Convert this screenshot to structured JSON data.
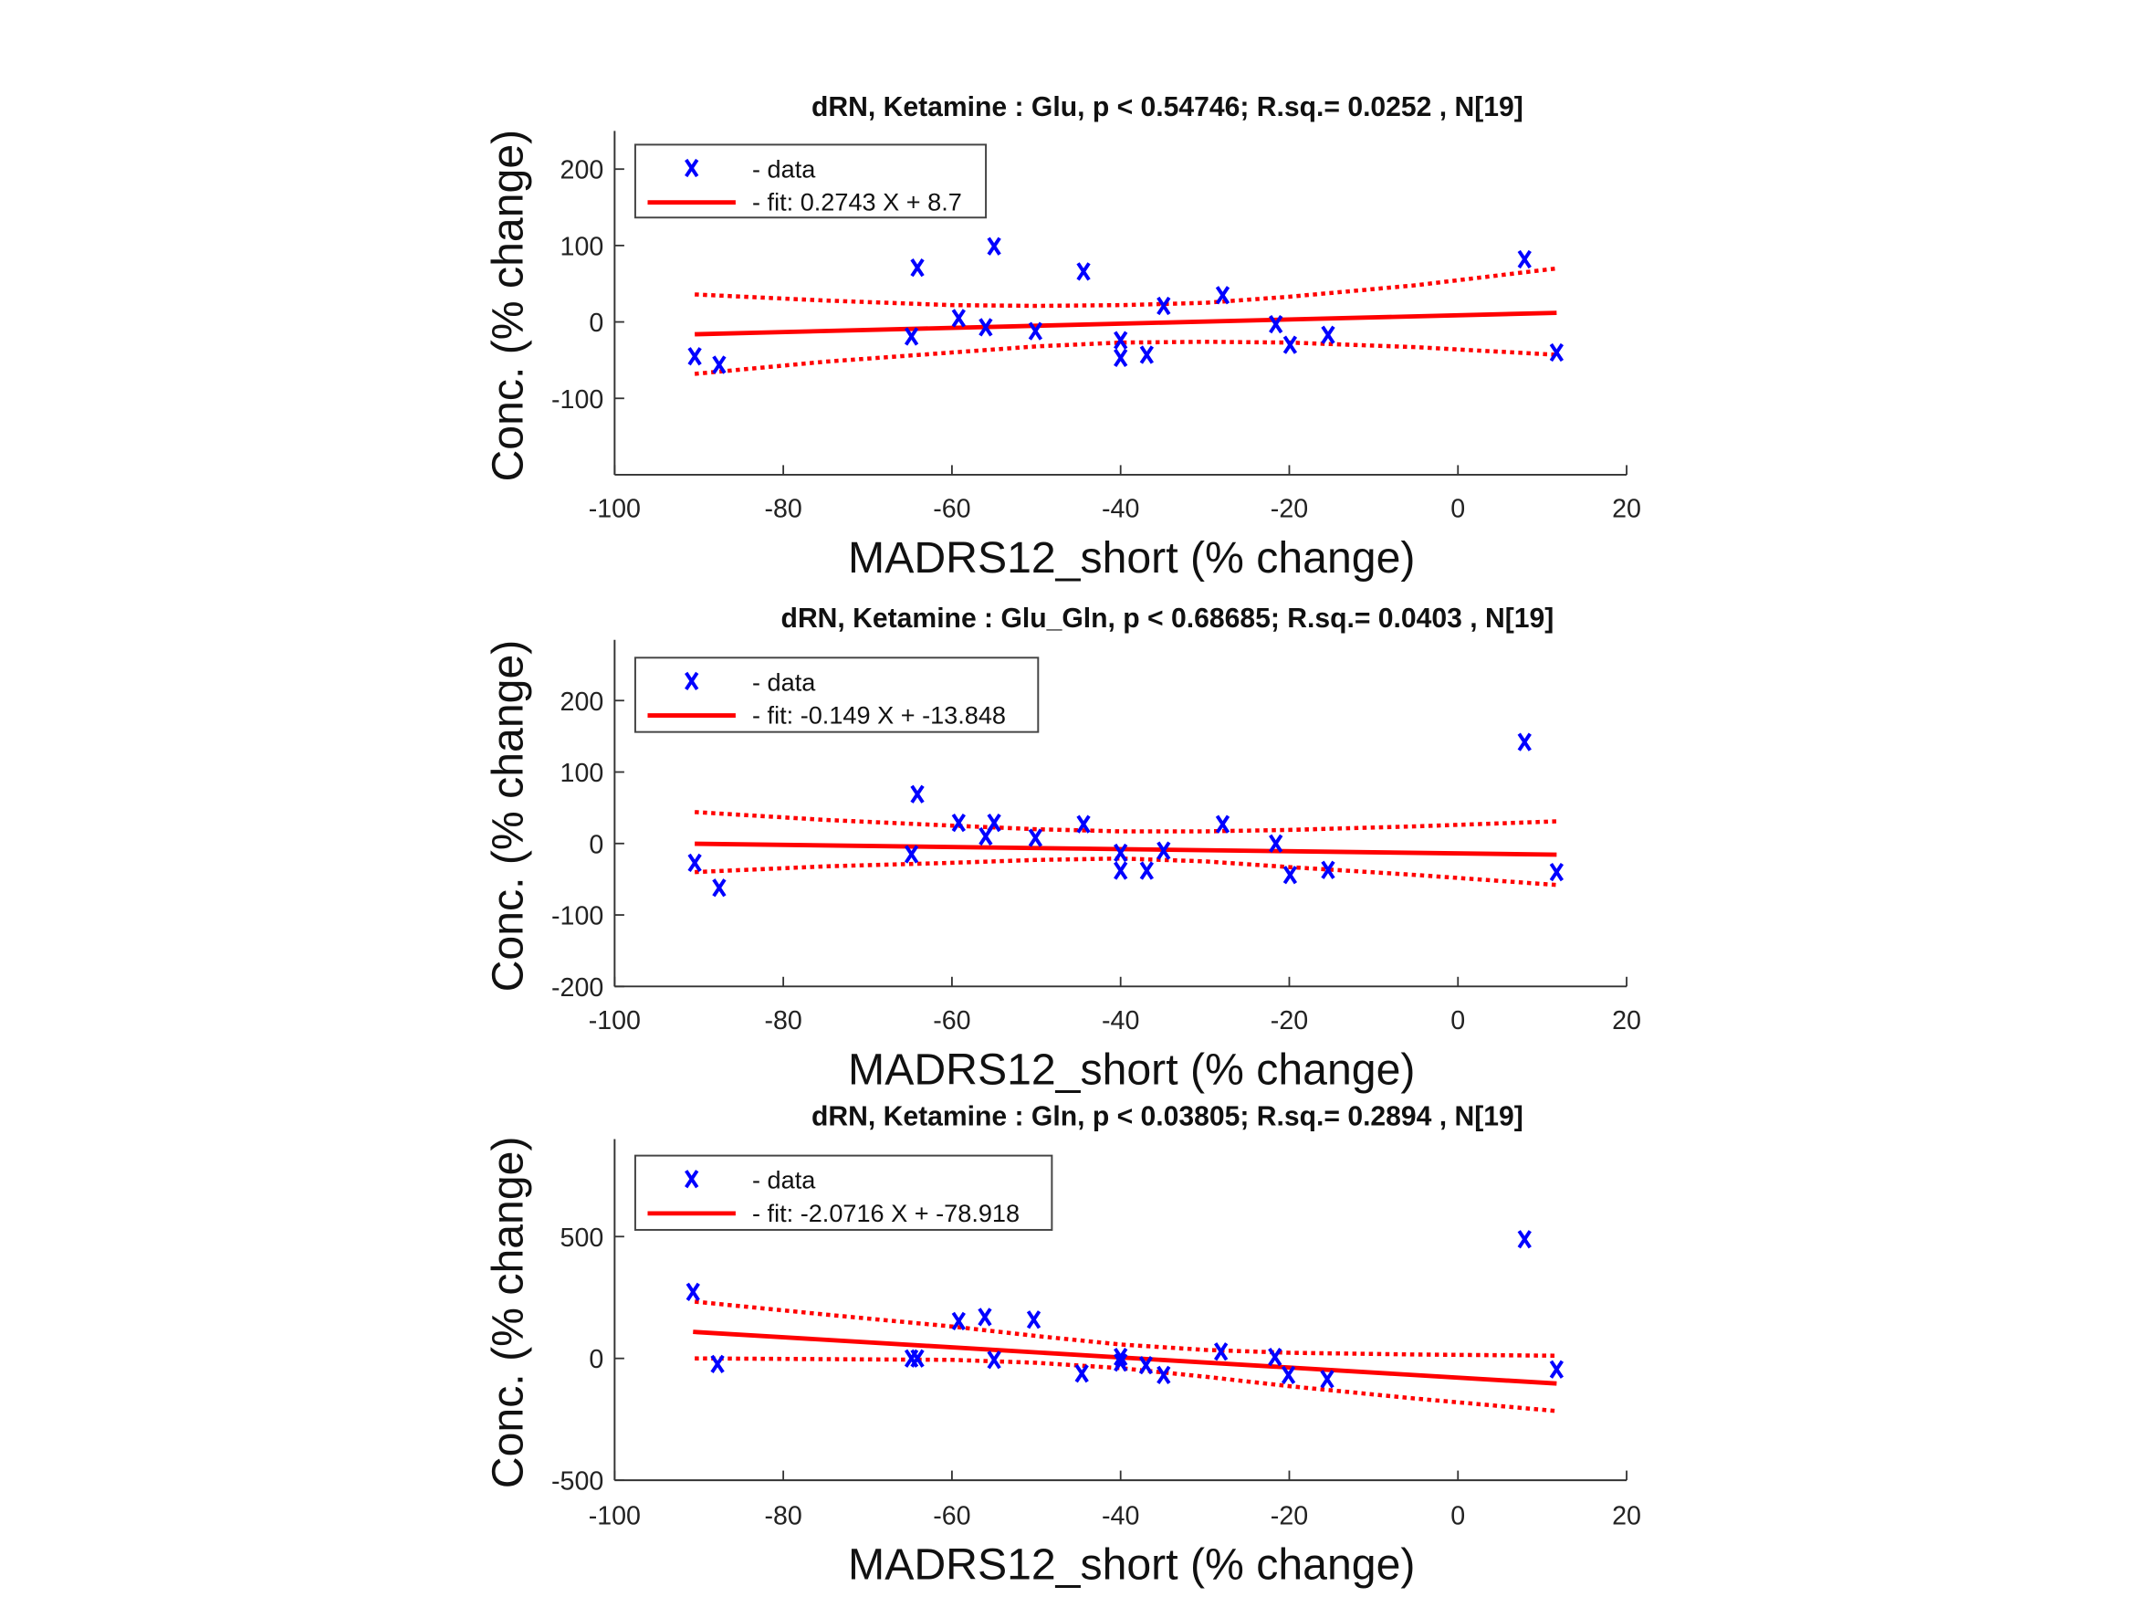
{
  "chart_data": [
    {
      "type": "scatter",
      "title": "dRN,  Ketamine : Glu, p < 0.54746; R.sq.= 0.0252 , N[19]",
      "xlabel": "MADRS12_short (% change)",
      "ylabel": "Conc. (% change)",
      "xlim": [
        -100,
        20
      ],
      "ylim": [
        -200,
        250
      ],
      "xticks": [
        -100,
        -80,
        -60,
        -40,
        -20,
        0,
        20
      ],
      "yticks": [
        -100,
        0,
        100,
        200
      ],
      "legend": {
        "placement": "top-left",
        "data_label": "- data",
        "fit_label": "- fit: 0.2743 X + 8.7"
      },
      "fit": {
        "slope": 0.2743,
        "intercept": 8.7
      },
      "x": [
        -90.5,
        -87.6,
        -64.1,
        -64.8,
        -59.2,
        -56.0,
        -55.0,
        -50.1,
        -44.4,
        -40.0,
        -40.0,
        -36.9,
        -34.9,
        -27.9,
        -21.6,
        -19.9,
        -15.4,
        7.9,
        11.7
      ],
      "y": [
        -45,
        -56,
        71,
        -19,
        5,
        -7,
        99,
        -12,
        66,
        -24,
        -47,
        -43,
        21,
        35,
        -3,
        -30,
        -17,
        82,
        -40
      ],
      "ci_x": [
        -90.5,
        -75,
        -60,
        -50,
        -40,
        -30,
        -20,
        -5,
        11.7
      ],
      "ci_upper": [
        36,
        28,
        22,
        21,
        22,
        25,
        33,
        48,
        70
      ],
      "ci_lower": [
        -68,
        -52,
        -40,
        -32,
        -27,
        -26,
        -27,
        -33,
        -43
      ]
    },
    {
      "type": "scatter",
      "title": "dRN,  Ketamine : Glu_Gln, p < 0.68685; R.sq.= 0.0403 , N[19]",
      "xlabel": "MADRS12_short (% change)",
      "ylabel": "Conc. (% change)",
      "xlim": [
        -100,
        20
      ],
      "ylim": [
        -200,
        285
      ],
      "xticks": [
        -100,
        -80,
        -60,
        -40,
        -20,
        0,
        20
      ],
      "yticks": [
        -200,
        -100,
        0,
        100,
        200
      ],
      "legend": {
        "placement": "top-left",
        "data_label": "- data",
        "fit_label": "- fit: -0.149 X + -13.848"
      },
      "fit": {
        "slope": -0.149,
        "intercept": -13.848
      },
      "x": [
        -90.5,
        -87.6,
        -64.1,
        -64.8,
        -59.2,
        -56.0,
        -55.0,
        -50.1,
        -44.4,
        -40.0,
        -40.0,
        -36.9,
        -34.9,
        -27.9,
        -21.6,
        -19.9,
        -15.4,
        7.9,
        11.7
      ],
      "y": [
        -27,
        -62,
        69,
        -15,
        29,
        10,
        29,
        8,
        27,
        -13,
        -38,
        -38,
        -10,
        27,
        0,
        -44,
        -37,
        142,
        -40
      ],
      "ci_x": [
        -90.5,
        -75,
        -60,
        -50,
        -40,
        -30,
        -20,
        -5,
        11.7
      ],
      "ci_upper": [
        44,
        33,
        25,
        20,
        17,
        17,
        19,
        24,
        31
      ],
      "ci_lower": [
        -40,
        -32,
        -27,
        -23,
        -21,
        -25,
        -33,
        -44,
        -58
      ]
    },
    {
      "type": "scatter",
      "title": "dRN,  Ketamine : Gln, p < 0.03805; R.sq.= 0.2894 , N[19]",
      "xlabel": "MADRS12_short (% change)",
      "ylabel": "Conc. (% change)",
      "xlim": [
        -100,
        20
      ],
      "ylim": [
        -500,
        900
      ],
      "xticks": [
        -100,
        -80,
        -60,
        -40,
        -20,
        0,
        20
      ],
      "yticks": [
        -500,
        0,
        500
      ],
      "legend": {
        "placement": "top-left",
        "data_label": "- data",
        "fit_label": "- fit: -2.0716 X + -78.918"
      },
      "fit": {
        "slope": -2.0716,
        "intercept": -78.918
      },
      "x": [
        -90.7,
        -87.8,
        -64.8,
        -64.1,
        -59.2,
        -56.1,
        -55.0,
        -50.3,
        -44.6,
        -40.0,
        -40.0,
        -37.0,
        -34.9,
        -28.1,
        -21.7,
        -20.1,
        -15.5,
        7.9,
        11.7
      ],
      "y": [
        273,
        -23,
        0,
        0,
        153,
        170,
        -6,
        159,
        -62,
        6,
        -17,
        -28,
        -68,
        28,
        6,
        -68,
        -85,
        489,
        -45
      ],
      "ci_x": [
        -90.5,
        -75,
        -60,
        -50,
        -40,
        -30,
        -20,
        -5,
        11.7
      ],
      "ci_upper": [
        233,
        180,
        131,
        92,
        57,
        35,
        23,
        16,
        11
      ],
      "ci_lower": [
        0,
        -3,
        -6,
        -18,
        -40,
        -75,
        -114,
        -165,
        -216
      ]
    }
  ],
  "colors": {
    "data": "#0000ff",
    "fit": "#ff0000",
    "axis": "#333333"
  }
}
